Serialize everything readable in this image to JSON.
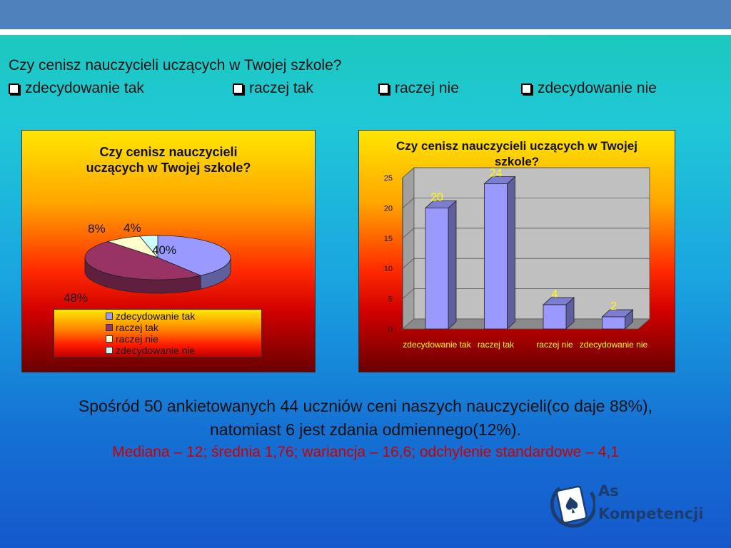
{
  "question": "Czy cenisz nauczycieli uczących w Twojej szkole?",
  "options": [
    "zdecydowanie tak",
    "raczej tak",
    "raczej nie",
    "zdecydowanie nie"
  ],
  "summary": {
    "line1": "Spośród 50 ankietowanych 44 uczniów ceni naszych nauczycieli(co daje 88%),",
    "line2": "natomiast 6 jest zdania odmiennego(12%).",
    "stats": "Mediana – 12; średnia 1,76; wariancja – 16,6; odchylenie standardowe – 4,1"
  },
  "logo": {
    "line1": "As",
    "line2": "Kompetencji"
  },
  "colors": {
    "topbar": "#4f81bd",
    "stats_text": "#cc0000",
    "slice_colors": [
      "#9999ff",
      "#993366",
      "#ffffcc",
      "#ccffff"
    ],
    "bar_color": "#9999ff",
    "bar_label_color": "#ffff00",
    "logo": "#1c3d6e"
  },
  "chart_data": [
    {
      "type": "pie",
      "title": "Czy cenisz nauczycieli uczących w Twojej szkole?",
      "categories": [
        "zdecydowanie tak",
        "raczej tak",
        "raczej nie",
        "zdecydowanie nie"
      ],
      "values": [
        40,
        48,
        8,
        4
      ],
      "labels": [
        "40%",
        "48%",
        "8%",
        "4%"
      ],
      "legend": "bottom"
    },
    {
      "type": "bar",
      "title": "Czy cenisz nauczycieli uczących w Twojej szkole?",
      "categories": [
        "zdecydowanie tak",
        "raczej tak",
        "raczej nie",
        "zdecydowanie nie"
      ],
      "values": [
        20,
        24,
        4,
        2
      ],
      "data_labels": [
        "20",
        "24",
        "4",
        "2"
      ],
      "ylim": [
        0,
        25
      ],
      "yticks": [
        "0",
        "5",
        "10",
        "15",
        "20",
        "25"
      ],
      "grid": true,
      "legend": "none"
    }
  ]
}
